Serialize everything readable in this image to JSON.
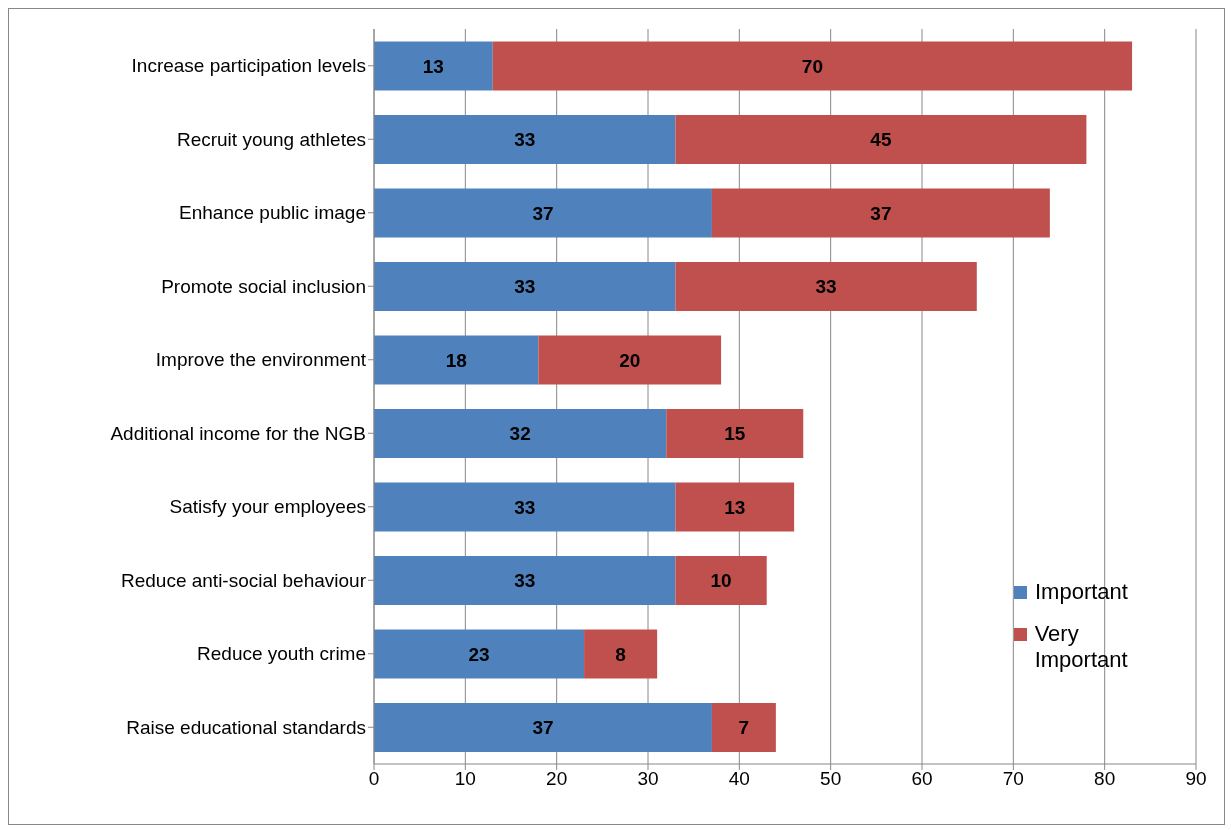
{
  "chart_data": {
    "type": "bar",
    "orientation": "horizontal",
    "stacked": true,
    "categories": [
      "Increase participation levels",
      "Recruit young athletes",
      "Enhance public image",
      "Promote social inclusion",
      "Improve the environment",
      "Additional income for the NGB",
      "Satisfy your employees",
      "Reduce anti-social behaviour",
      "Reduce youth crime",
      "Raise educational standards"
    ],
    "series": [
      {
        "name": "Important",
        "color": "#4f81bd",
        "values": [
          13,
          33,
          37,
          33,
          18,
          32,
          33,
          33,
          23,
          37
        ]
      },
      {
        "name": "Very Important",
        "color": "#c0504d",
        "values": [
          70,
          45,
          37,
          33,
          20,
          15,
          13,
          10,
          8,
          7
        ]
      }
    ],
    "xlim": [
      0,
      90
    ],
    "xticks": [
      0,
      10,
      20,
      30,
      40,
      50,
      60,
      70,
      80,
      90
    ],
    "grid": "x",
    "legend": "bottom right",
    "data_labels": true
  }
}
